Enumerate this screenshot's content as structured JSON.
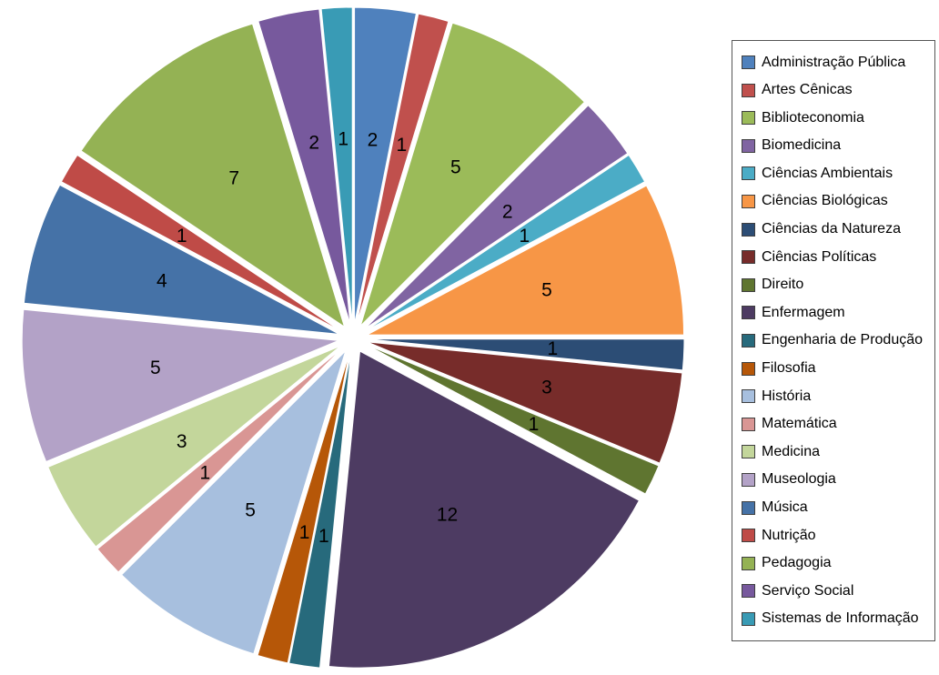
{
  "chart_data": {
    "type": "pie",
    "title": "",
    "legend_position": "right",
    "start_angle_deg": 0,
    "direction": "clockwise",
    "exploded": true,
    "total": 64,
    "slice_labels_show": "value",
    "label_color": "#000000",
    "background_color": "#FFFFFF",
    "categories": [
      "Administração Pública",
      "Artes Cênicas",
      "Biblioteconomia",
      "Biomedicina",
      "Ciências Ambientais",
      "Ciências Biológicas",
      "Ciências da Natureza",
      "Ciências Políticas",
      "Direito",
      "Enfermagem",
      "Engenharia de Produção",
      "Filosofia",
      "História",
      "Matemática",
      "Medicina",
      "Museologia",
      "Música",
      "Nutrição",
      "Pedagogia",
      "Serviço Social",
      "Sistemas de Informação"
    ],
    "values": [
      2,
      1,
      5,
      2,
      1,
      5,
      1,
      3,
      1,
      12,
      1,
      1,
      5,
      1,
      3,
      5,
      4,
      1,
      7,
      2,
      1
    ],
    "colors": [
      "#4F81BD",
      "#C0504D",
      "#9BBB59",
      "#8064A2",
      "#4BACC6",
      "#F79646",
      "#2C4D75",
      "#772C2A",
      "#5F7530",
      "#4D3B62",
      "#276A7C",
      "#B65708",
      "#A7BFDE",
      "#D99694",
      "#C3D69B",
      "#B3A2C7",
      "#4572A7",
      "#BF4B47",
      "#94B254",
      "#77599D",
      "#399BB5"
    ]
  }
}
